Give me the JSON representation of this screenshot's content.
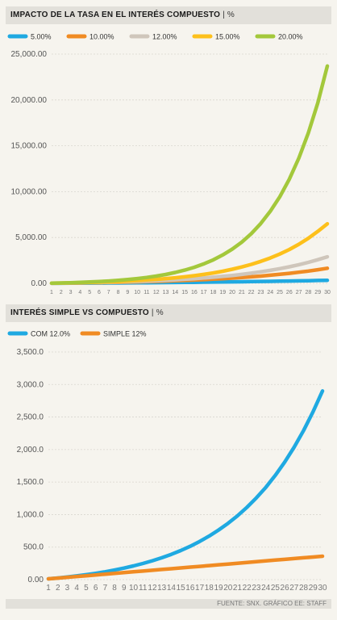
{
  "chart_data": [
    {
      "type": "line",
      "title": "IMPACTO DE LA TASA EN EL INTERÉS COMPUESTO",
      "unit": "%",
      "x": [
        1,
        2,
        3,
        4,
        5,
        6,
        7,
        8,
        9,
        10,
        11,
        12,
        13,
        14,
        15,
        16,
        17,
        18,
        19,
        20,
        21,
        22,
        23,
        24,
        25,
        26,
        27,
        28,
        29,
        30
      ],
      "x_ticks": [
        "1",
        "2",
        "3",
        "4",
        "5",
        "6",
        "7",
        "8",
        "9",
        "10",
        "11",
        "12",
        "13",
        "14",
        "15",
        "16",
        "17",
        "18",
        "19",
        "20",
        "21",
        "22",
        "23",
        "24",
        "25",
        "26",
        "27",
        "28",
        "29",
        "30"
      ],
      "ylim": [
        0,
        25000
      ],
      "y_ticks": [
        "0.00",
        "5,000.00",
        "10,000.00",
        "15,000.00",
        "20,000.00",
        "25,000.00"
      ],
      "legend": "top",
      "series": [
        {
          "name": "5.00%",
          "color": "#1fa9e1",
          "values": [
            5,
            10,
            16,
            22,
            28,
            34,
            41,
            48,
            55,
            63,
            71,
            80,
            89,
            98,
            108,
            118,
            129,
            141,
            153,
            165,
            179,
            193,
            207,
            223,
            239,
            256,
            274,
            293,
            313,
            332
          ]
        },
        {
          "name": "10.00%",
          "color": "#f08b23",
          "values": [
            10,
            21,
            33,
            46,
            61,
            77,
            95,
            114,
            136,
            159,
            185,
            214,
            245,
            280,
            318,
            359,
            405,
            456,
            512,
            573,
            640,
            714,
            795,
            885,
            983,
            1092,
            1211,
            1342,
            1486,
            1645
          ]
        },
        {
          "name": "12.00%",
          "color": "#cfc6bb",
          "values": [
            12,
            25,
            40,
            57,
            76,
            97,
            121,
            148,
            177,
            211,
            248,
            290,
            336,
            389,
            447,
            513,
            587,
            669,
            762,
            865,
            981,
            1111,
            1256,
            1419,
            1602,
            1807,
            2036,
            2293,
            2581,
            2900
          ]
        },
        {
          "name": "15.00%",
          "color": "#fdc01b",
          "values": [
            15,
            32,
            52,
            75,
            101,
            131,
            166,
            206,
            252,
            305,
            366,
            435,
            515,
            608,
            714,
            836,
            976,
            1138,
            1323,
            1537,
            1783,
            2066,
            2391,
            2765,
            3195,
            3690,
            4259,
            4913,
            5666,
            6500
          ]
        },
        {
          "name": "20.00%",
          "color": "#a3c83b",
          "values": [
            20,
            44,
            73,
            107,
            149,
            199,
            258,
            330,
            416,
            519,
            643,
            792,
            970,
            1184,
            1441,
            1749,
            2119,
            2562,
            3095,
            3734,
            4501,
            5421,
            6526,
            7851,
            9441,
            11350,
            13640,
            16388,
            19685,
            23700
          ]
        }
      ]
    },
    {
      "type": "line",
      "title": "INTERÉS SIMPLE VS COMPUESTO",
      "unit": "%",
      "x": [
        1,
        2,
        3,
        4,
        5,
        6,
        7,
        8,
        9,
        10,
        11,
        12,
        13,
        14,
        15,
        16,
        17,
        18,
        19,
        20,
        21,
        22,
        23,
        24,
        25,
        26,
        27,
        28,
        29,
        30
      ],
      "x_ticks": [
        "1",
        "2",
        "3",
        "4",
        "5",
        "6",
        "7",
        "8",
        "9",
        "10",
        "11",
        "12",
        "13",
        "14",
        "15",
        "16",
        "17",
        "18",
        "19",
        "20",
        "21",
        "22",
        "23",
        "24",
        "25",
        "26",
        "27",
        "28",
        "29",
        "30"
      ],
      "ylim": [
        0,
        3500
      ],
      "y_ticks": [
        "0.00",
        "500.0",
        "1,000.0",
        "1,500.0",
        "2,000.0",
        "2,500.0",
        "3,000.0",
        "3,500.0"
      ],
      "legend": "top",
      "series": [
        {
          "name": "COM 12.0%",
          "color": "#1fa9e1",
          "values": [
            12,
            25,
            40,
            57,
            76,
            97,
            121,
            148,
            177,
            211,
            248,
            290,
            336,
            389,
            447,
            513,
            587,
            669,
            762,
            865,
            981,
            1111,
            1256,
            1419,
            1602,
            1807,
            2036,
            2293,
            2581,
            2900
          ]
        },
        {
          "name": "SIMPLE 12%",
          "color": "#f08b23",
          "values": [
            12,
            24,
            36,
            48,
            60,
            72,
            84,
            96,
            108,
            120,
            132,
            144,
            156,
            168,
            180,
            192,
            204,
            216,
            228,
            240,
            252,
            264,
            276,
            288,
            300,
            312,
            324,
            336,
            348,
            360
          ]
        }
      ]
    }
  ],
  "footer": {
    "source": "FUENTE: SNX. GRÁFICO EE: STAFF"
  }
}
